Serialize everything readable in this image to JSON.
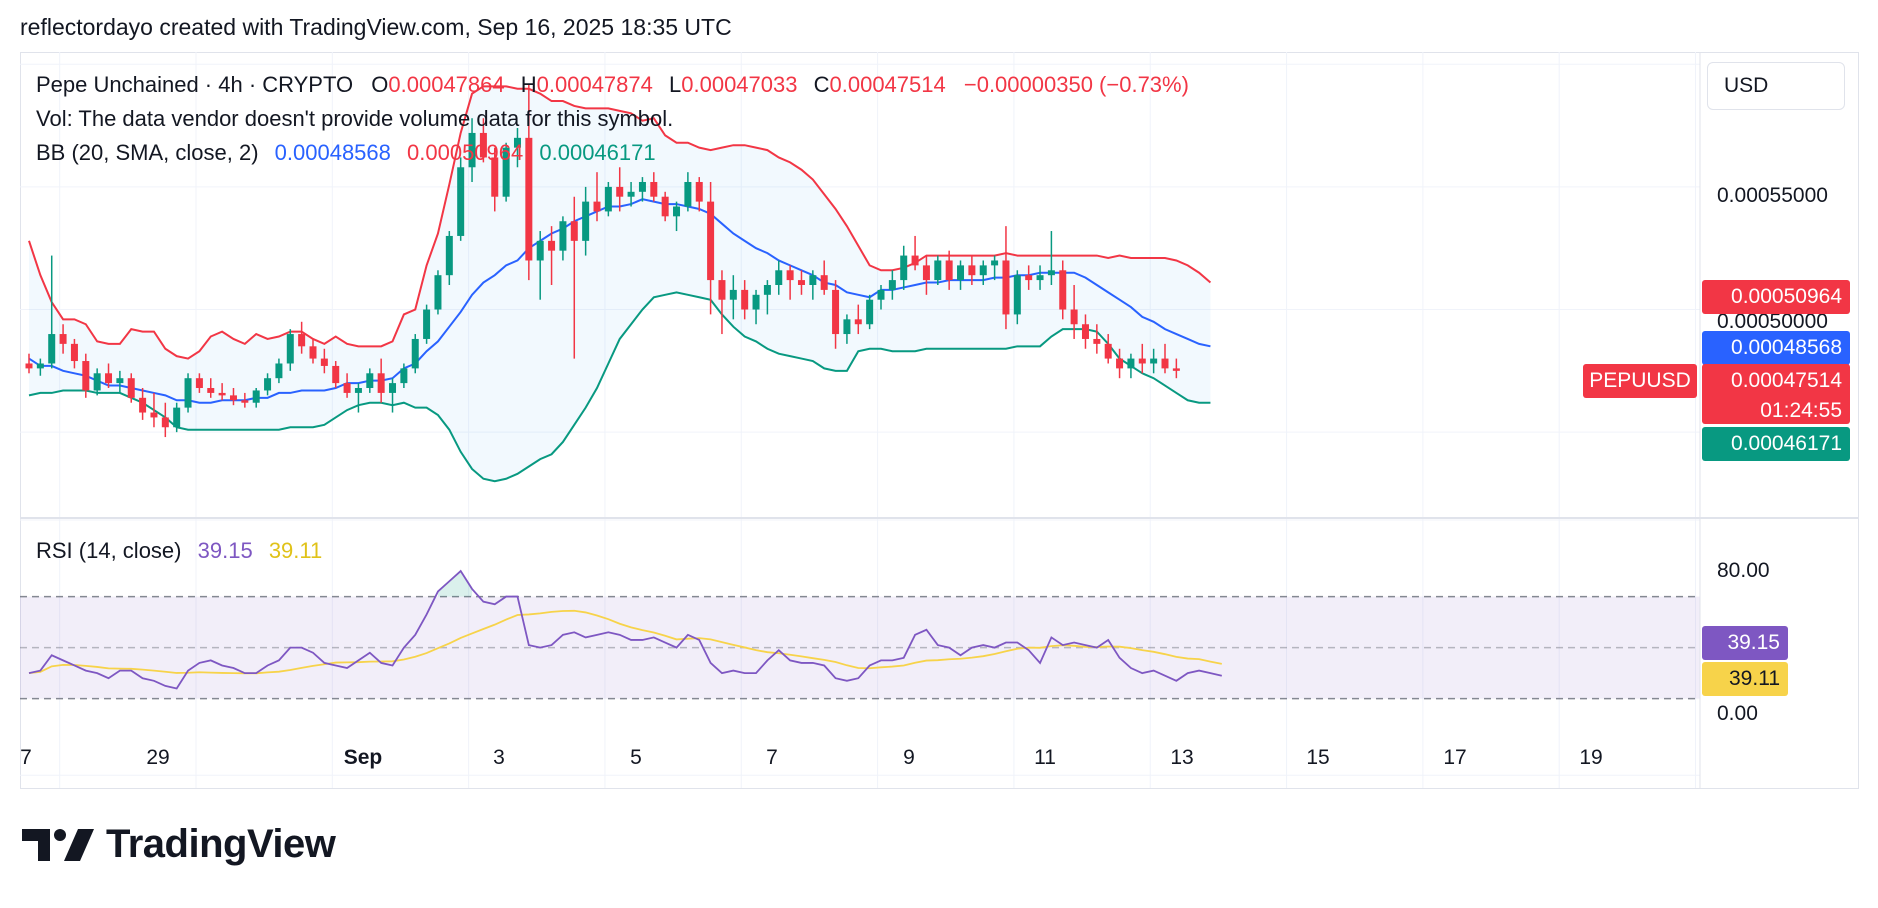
{
  "header": {
    "text": "reflectordayo created with TradingView.com, Sep 16, 2025 18:35 UTC"
  },
  "legend": {
    "symbol": "Pepe Unchained · 4h · CRYPTO",
    "o_label": "O",
    "o_value": "0.00047864",
    "h_label": "H",
    "h_value": "0.00047874",
    "l_label": "L",
    "l_value": "0.00047033",
    "c_label": "C",
    "c_value": "0.00047514",
    "change": "−0.00000350 (−0.73%)",
    "vol": "Vol: The data vendor doesn't provide volume data for this symbol.",
    "bb_label": "BB (20, SMA, close, 2)",
    "bb_basis": "0.00048568",
    "bb_upper": "0.00050964",
    "bb_lower": "0.00046171",
    "rsi_label": "RSI (14, close)",
    "rsi_value": "39.15",
    "rsi_ma": "39.11"
  },
  "currency": "USD",
  "price_axis": {
    "ticks": [
      "0.00055000",
      "0.00050000"
    ]
  },
  "rsi_axis": {
    "ticks": [
      "80.00",
      "0.00"
    ]
  },
  "tags": {
    "upper": "0.00050964",
    "basis": "0.00048568",
    "symbol": "PEPUUSD",
    "last": "0.00047514",
    "countdown": "01:24:55",
    "lower": "0.00046171",
    "rsi": "39.15",
    "rsi_ma": "39.11"
  },
  "x_axis": {
    "labels": [
      "7",
      "29",
      "Sep",
      "3",
      "5",
      "7",
      "9",
      "11",
      "13",
      "15",
      "17",
      "19"
    ]
  },
  "logo": {
    "text": "TradingView"
  },
  "colors": {
    "up": "#089981",
    "down": "#f23645",
    "bb_basis": "#2962ff",
    "bb_upper": "#f23645",
    "bb_lower": "#089981",
    "rsi": "#7e57c2",
    "rsi_ma": "#f7d34a"
  },
  "chart_data": {
    "type": "candlestick",
    "interval": "4h",
    "price_ylim": [
      0.000415,
      0.000605
    ],
    "price_ticks": [
      0.0005,
      0.00055
    ],
    "rsi_ylim": [
      -5,
      100
    ],
    "rsi_bands": [
      30,
      50,
      70
    ],
    "x_start_day": 27,
    "candles": [
      [
        0.000478,
        0.000482,
        0.000474,
        0.000476
      ],
      [
        0.000476,
        0.00048,
        0.000473,
        0.000478
      ],
      [
        0.000478,
        0.000522,
        0.000476,
        0.00049
      ],
      [
        0.00049,
        0.000494,
        0.000482,
        0.000486
      ],
      [
        0.000486,
        0.000488,
        0.000476,
        0.000479
      ],
      [
        0.000479,
        0.000482,
        0.000464,
        0.000467
      ],
      [
        0.000467,
        0.000476,
        0.000465,
        0.000474
      ],
      [
        0.000474,
        0.000478,
        0.000468,
        0.00047
      ],
      [
        0.00047,
        0.000475,
        0.000466,
        0.000472
      ],
      [
        0.000472,
        0.000474,
        0.000462,
        0.000464
      ],
      [
        0.000464,
        0.000468,
        0.000455,
        0.000458
      ],
      [
        0.000458,
        0.000466,
        0.000452,
        0.000456
      ],
      [
        0.000456,
        0.000462,
        0.000448,
        0.000452
      ],
      [
        0.000452,
        0.000462,
        0.00045,
        0.00046
      ],
      [
        0.00046,
        0.000474,
        0.000458,
        0.000472
      ],
      [
        0.000472,
        0.000474,
        0.000466,
        0.000468
      ],
      [
        0.000468,
        0.000472,
        0.000464,
        0.000466
      ],
      [
        0.000466,
        0.00047,
        0.000463,
        0.000465
      ],
      [
        0.000465,
        0.000468,
        0.000461,
        0.000463
      ],
      [
        0.000463,
        0.000466,
        0.00046,
        0.000462
      ],
      [
        0.000462,
        0.000468,
        0.00046,
        0.000467
      ],
      [
        0.000467,
        0.000474,
        0.000465,
        0.000472
      ],
      [
        0.000472,
        0.00048,
        0.00047,
        0.000478
      ],
      [
        0.000478,
        0.000492,
        0.000475,
        0.00049
      ],
      [
        0.00049,
        0.000495,
        0.000482,
        0.000485
      ],
      [
        0.000485,
        0.000488,
        0.000478,
        0.00048
      ],
      [
        0.00048,
        0.000484,
        0.000474,
        0.000477
      ],
      [
        0.000477,
        0.000479,
        0.000468,
        0.00047
      ],
      [
        0.00047,
        0.000474,
        0.000464,
        0.000466
      ],
      [
        0.000466,
        0.00047,
        0.000458,
        0.000468
      ],
      [
        0.000468,
        0.000476,
        0.000466,
        0.000474
      ],
      [
        0.000474,
        0.00048,
        0.000462,
        0.000466
      ],
      [
        0.000466,
        0.000472,
        0.000458,
        0.00047
      ],
      [
        0.00047,
        0.000478,
        0.000468,
        0.000476
      ],
      [
        0.000476,
        0.00049,
        0.000474,
        0.000488
      ],
      [
        0.000488,
        0.000502,
        0.000486,
        0.0005
      ],
      [
        0.0005,
        0.000516,
        0.000498,
        0.000514
      ],
      [
        0.000514,
        0.000532,
        0.00051,
        0.00053
      ],
      [
        0.00053,
        0.000562,
        0.000528,
        0.000558
      ],
      [
        0.000558,
        0.000578,
        0.000552,
        0.000572
      ],
      [
        0.000572,
        0.000578,
        0.00056,
        0.000562
      ],
      [
        0.000562,
        0.000566,
        0.00054,
        0.000546
      ],
      [
        0.000546,
        0.000568,
        0.000544,
        0.000566
      ],
      [
        0.000566,
        0.000574,
        0.000558,
        0.00057
      ],
      [
        0.00057,
        0.000592,
        0.000512,
        0.00052
      ],
      [
        0.00052,
        0.000532,
        0.000504,
        0.000528
      ],
      [
        0.000528,
        0.000534,
        0.00051,
        0.000524
      ],
      [
        0.000524,
        0.000538,
        0.00052,
        0.000536
      ],
      [
        0.000536,
        0.000546,
        0.00048,
        0.000528
      ],
      [
        0.000528,
        0.00055,
        0.000522,
        0.000544
      ],
      [
        0.000544,
        0.000556,
        0.000536,
        0.00054
      ],
      [
        0.00054,
        0.000552,
        0.000538,
        0.00055
      ],
      [
        0.00055,
        0.000558,
        0.00054,
        0.000546
      ],
      [
        0.000546,
        0.000552,
        0.000542,
        0.000548
      ],
      [
        0.000548,
        0.000554,
        0.000544,
        0.000552
      ],
      [
        0.000552,
        0.000556,
        0.000544,
        0.000546
      ],
      [
        0.000546,
        0.000548,
        0.000536,
        0.000538
      ],
      [
        0.000538,
        0.000544,
        0.000532,
        0.000542
      ],
      [
        0.000542,
        0.000556,
        0.00054,
        0.000552
      ],
      [
        0.000552,
        0.000554,
        0.00054,
        0.000544
      ],
      [
        0.000544,
        0.000552,
        0.000498,
        0.000512
      ],
      [
        0.000512,
        0.000516,
        0.00049,
        0.000504
      ],
      [
        0.000504,
        0.000514,
        0.000496,
        0.000508
      ],
      [
        0.000508,
        0.000512,
        0.000496,
        0.0005
      ],
      [
        0.0005,
        0.000508,
        0.000494,
        0.000506
      ],
      [
        0.000506,
        0.000512,
        0.000498,
        0.00051
      ],
      [
        0.00051,
        0.00052,
        0.000506,
        0.000516
      ],
      [
        0.000516,
        0.000518,
        0.000504,
        0.000512
      ],
      [
        0.000512,
        0.000516,
        0.000506,
        0.00051
      ],
      [
        0.00051,
        0.000516,
        0.000504,
        0.000514
      ],
      [
        0.000514,
        0.00052,
        0.000506,
        0.000508
      ],
      [
        0.000508,
        0.000512,
        0.000484,
        0.00049
      ],
      [
        0.00049,
        0.000498,
        0.000486,
        0.000496
      ],
      [
        0.000496,
        0.000502,
        0.00049,
        0.000494
      ],
      [
        0.000494,
        0.000506,
        0.000492,
        0.000504
      ],
      [
        0.000504,
        0.00051,
        0.0005,
        0.000508
      ],
      [
        0.000508,
        0.000516,
        0.000504,
        0.000512
      ],
      [
        0.000512,
        0.000526,
        0.000508,
        0.000522
      ],
      [
        0.000522,
        0.00053,
        0.000516,
        0.000518
      ],
      [
        0.000518,
        0.000522,
        0.000506,
        0.000512
      ],
      [
        0.000512,
        0.000522,
        0.00051,
        0.00052
      ],
      [
        0.00052,
        0.000524,
        0.000508,
        0.000512
      ],
      [
        0.000512,
        0.00052,
        0.000508,
        0.000518
      ],
      [
        0.000518,
        0.000522,
        0.00051,
        0.000514
      ],
      [
        0.000514,
        0.00052,
        0.00051,
        0.000518
      ],
      [
        0.000518,
        0.000522,
        0.000512,
        0.00052
      ],
      [
        0.00052,
        0.000534,
        0.000492,
        0.000498
      ],
      [
        0.000498,
        0.000516,
        0.000494,
        0.000514
      ],
      [
        0.000514,
        0.000518,
        0.000508,
        0.000512
      ],
      [
        0.000512,
        0.000518,
        0.000508,
        0.000514
      ],
      [
        0.000514,
        0.000532,
        0.00051,
        0.000516
      ],
      [
        0.000516,
        0.00052,
        0.000496,
        0.0005
      ],
      [
        0.0005,
        0.00051,
        0.000488,
        0.000494
      ],
      [
        0.000494,
        0.000498,
        0.000484,
        0.000488
      ],
      [
        0.000488,
        0.000494,
        0.000482,
        0.000486
      ],
      [
        0.000486,
        0.00049,
        0.000478,
        0.00048
      ],
      [
        0.00048,
        0.000484,
        0.000472,
        0.000476
      ],
      [
        0.000476,
        0.000482,
        0.000472,
        0.00048
      ],
      [
        0.00048,
        0.000486,
        0.000474,
        0.000478
      ],
      [
        0.000478,
        0.000484,
        0.000474,
        0.00048
      ],
      [
        0.00048,
        0.000486,
        0.000474,
        0.000476
      ],
      [
        0.000476,
        0.00048,
        0.000472,
        0.000475
      ]
    ],
    "bb_upper": [
      0.000528,
      0.000514,
      0.000503,
      0.000496,
      0.000496,
      0.000494,
      0.000487,
      0.000486,
      0.000486,
      0.000492,
      0.000491,
      0.000491,
      0.000484,
      0.000481,
      0.00048,
      0.000483,
      0.000489,
      0.000491,
      0.000488,
      0.000486,
      0.00049,
      0.000488,
      0.000489,
      0.000491,
      0.000491,
      0.000488,
      0.000486,
      0.000489,
      0.000486,
      0.000485,
      0.000485,
      0.000485,
      0.000487,
      0.000498,
      0.0005,
      0.000518,
      0.000531,
      0.000551,
      0.000572,
      0.000588,
      0.000591,
      0.000591,
      0.000591,
      0.00059,
      0.00059,
      0.000588,
      0.000585,
      0.000585,
      0.000583,
      0.000582,
      0.000582,
      0.000582,
      0.000581,
      0.00058,
      0.000577,
      0.000578,
      0.000571,
      0.000568,
      0.000568,
      0.000566,
      0.000565,
      0.000566,
      0.000567,
      0.000567,
      0.000566,
      0.000565,
      0.000562,
      0.00056,
      0.000557,
      0.000553,
      0.000547,
      0.000541,
      0.000534,
      0.000526,
      0.000518,
      0.000516,
      0.000516,
      0.000517,
      0.000519,
      0.000522,
      0.000522,
      0.000522,
      0.000522,
      0.000522,
      0.000522,
      0.000522,
      0.000523,
      0.000522,
      0.000522,
      0.000522,
      0.000522,
      0.000522,
      0.000522,
      0.000522,
      0.000522,
      0.000521,
      0.000522,
      0.000521,
      0.000521,
      0.000521,
      0.000521,
      0.00052,
      0.000518,
      0.000515,
      0.000511
    ],
    "bb_basis": [
      0.00048,
      0.000477,
      0.000477,
      0.000475,
      0.000474,
      0.000473,
      0.000471,
      0.000469,
      0.000469,
      0.000468,
      0.000467,
      0.000466,
      0.000465,
      0.000463,
      0.000463,
      0.000462,
      0.000462,
      0.000463,
      0.000463,
      0.000463,
      0.000464,
      0.000464,
      0.000466,
      0.000466,
      0.000467,
      0.000467,
      0.000467,
      0.000468,
      0.00047,
      0.00047,
      0.000471,
      0.000471,
      0.000472,
      0.000476,
      0.000478,
      0.000483,
      0.000487,
      0.000493,
      0.000499,
      0.000506,
      0.000511,
      0.000514,
      0.000518,
      0.00052,
      0.000525,
      0.000528,
      0.000531,
      0.000533,
      0.000536,
      0.000538,
      0.00054,
      0.000542,
      0.000542,
      0.000543,
      0.000545,
      0.000544,
      0.000543,
      0.000543,
      0.000542,
      0.000541,
      0.000539,
      0.000535,
      0.000531,
      0.000528,
      0.000525,
      0.000523,
      0.00052,
      0.000518,
      0.000516,
      0.000514,
      0.000511,
      0.00051,
      0.000507,
      0.000506,
      0.000505,
      0.000508,
      0.000508,
      0.000509,
      0.00051,
      0.000511,
      0.000511,
      0.000512,
      0.000512,
      0.000512,
      0.000512,
      0.000513,
      0.000513,
      0.000514,
      0.000514,
      0.000515,
      0.000515,
      0.000515,
      0.000515,
      0.000513,
      0.00051,
      0.000507,
      0.000504,
      0.000501,
      0.000497,
      0.000495,
      0.000492,
      0.00049,
      0.000488,
      0.000486,
      0.000485
    ],
    "bb_lower": [
      0.000465,
      0.000466,
      0.000466,
      0.000467,
      0.000467,
      0.000467,
      0.000466,
      0.000466,
      0.000466,
      0.000464,
      0.000462,
      0.000459,
      0.000456,
      0.000452,
      0.000451,
      0.000451,
      0.000451,
      0.000451,
      0.000451,
      0.000451,
      0.000451,
      0.000451,
      0.000451,
      0.000452,
      0.000452,
      0.000452,
      0.000453,
      0.000456,
      0.000459,
      0.000461,
      0.000462,
      0.000462,
      0.000461,
      0.000462,
      0.00046,
      0.00046,
      0.000457,
      0.000451,
      0.000442,
      0.000435,
      0.000431,
      0.00043,
      0.000431,
      0.000433,
      0.000436,
      0.000439,
      0.000441,
      0.000446,
      0.000453,
      0.00046,
      0.000468,
      0.000478,
      0.000488,
      0.000494,
      0.0005,
      0.000505,
      0.000506,
      0.000507,
      0.000506,
      0.000505,
      0.000504,
      0.000498,
      0.000493,
      0.000489,
      0.000487,
      0.000484,
      0.000482,
      0.000481,
      0.00048,
      0.000479,
      0.000476,
      0.000475,
      0.000475,
      0.000483,
      0.000484,
      0.000484,
      0.000483,
      0.000483,
      0.000483,
      0.000484,
      0.000484,
      0.000484,
      0.000484,
      0.000484,
      0.000484,
      0.000484,
      0.000484,
      0.000485,
      0.000485,
      0.000485,
      0.000489,
      0.000492,
      0.000492,
      0.000492,
      0.000491,
      0.000486,
      0.00048,
      0.000477,
      0.000474,
      0.000472,
      0.000469,
      0.000466,
      0.000463,
      0.000462,
      0.000462
    ],
    "rsi": [
      40,
      41,
      47,
      45,
      43,
      41,
      40,
      38,
      41,
      41,
      38,
      37,
      35,
      34,
      41,
      44,
      45,
      43,
      42,
      40,
      40,
      43,
      45,
      50,
      50,
      48,
      44,
      43,
      42,
      45,
      48,
      44,
      43,
      50,
      55,
      63,
      72,
      76,
      80,
      73,
      68,
      67,
      70,
      70,
      51,
      50,
      51,
      55,
      56,
      54,
      55,
      56,
      55,
      53,
      53,
      54,
      52,
      50,
      55,
      53,
      44,
      40,
      41,
      40,
      40,
      45,
      49,
      45,
      44,
      44,
      43,
      38,
      37,
      38,
      43,
      45,
      45,
      46,
      55,
      57,
      51,
      50,
      47,
      50,
      51,
      50,
      52,
      52,
      49,
      44,
      54,
      51,
      52,
      51,
      50,
      53,
      46,
      42,
      40,
      41,
      39,
      37,
      40,
      41,
      40,
      39
    ]
  }
}
